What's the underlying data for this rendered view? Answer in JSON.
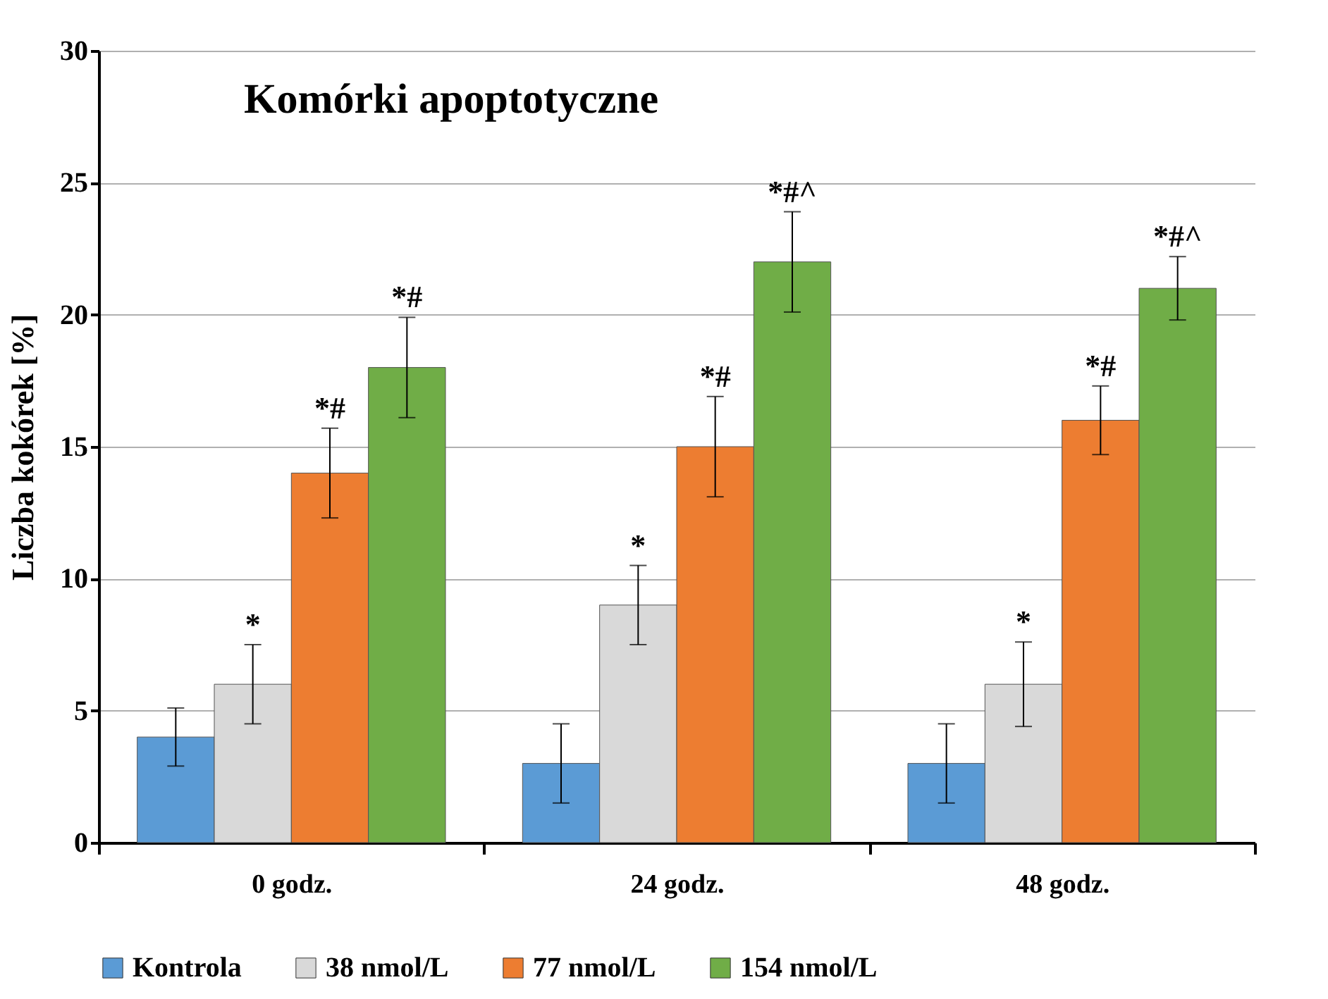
{
  "chart_data": {
    "type": "bar",
    "title": "Komórki apoptotyczne",
    "ylabel": "Liczba kokórek [%]",
    "categories": [
      "0 godz.",
      "24 godz.",
      "48 godz."
    ],
    "series": [
      {
        "name": "Kontrola",
        "color": "#5b9bd5",
        "values": [
          4,
          3,
          3
        ],
        "errors": [
          1.1,
          1.5,
          1.5
        ],
        "value_labels": [
          null,
          null,
          null
        ]
      },
      {
        "name": "38 nmol/L",
        "color": "#d9d9d9",
        "values": [
          6,
          9,
          6
        ],
        "errors": [
          1.5,
          1.5,
          1.6
        ],
        "value_labels": [
          "*",
          "*",
          "*"
        ]
      },
      {
        "name": "77 nmol/L",
        "color": "#ed7d31",
        "values": [
          14,
          15,
          16
        ],
        "errors": [
          1.7,
          1.9,
          1.3
        ],
        "value_labels": [
          "*#",
          "*#",
          "*#"
        ]
      },
      {
        "name": "154 nmol/L",
        "color": "#70ad47",
        "values": [
          18,
          22,
          21
        ],
        "errors": [
          1.9,
          1.9,
          1.2
        ],
        "value_labels": [
          "*#",
          "*#^",
          "*#^"
        ]
      }
    ],
    "ylim": [
      0,
      30
    ],
    "yticks": [
      0,
      5,
      10,
      15,
      20,
      25,
      30
    ],
    "grid": "y",
    "legend": "bottom"
  }
}
